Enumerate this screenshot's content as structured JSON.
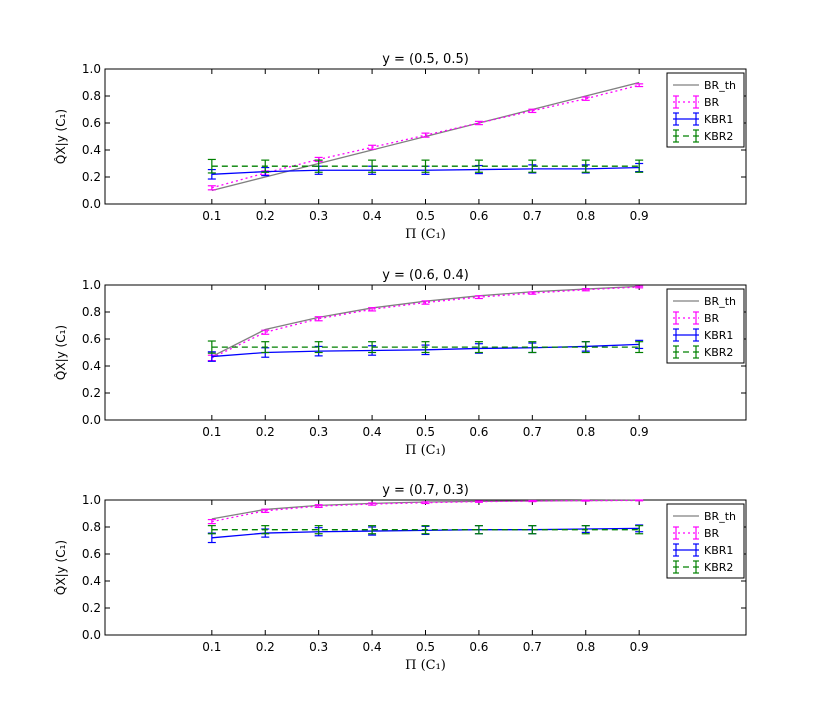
{
  "chart_data": [
    {
      "type": "line",
      "title": "y = (0.5, 0.5)",
      "xlabel": "Π (C₁)",
      "ylabel": "Q̂X|y (C₁)",
      "xlim": [
        -0.1,
        1.1
      ],
      "ylim": [
        0.0,
        1.0
      ],
      "xticks": [
        "0.1",
        "0.2",
        "0.3",
        "0.4",
        "0.5",
        "0.6",
        "0.7",
        "0.8",
        "0.9"
      ],
      "yticks": [
        "0.0",
        "0.2",
        "0.4",
        "0.6",
        "0.8",
        "1.0"
      ],
      "legend": "top-right",
      "x": [
        0.1,
        0.2,
        0.3,
        0.4,
        0.5,
        0.6,
        0.7,
        0.8,
        0.9
      ],
      "series": [
        {
          "name": "BR_th",
          "color": "#808080",
          "style": "solid",
          "values": [
            0.1,
            0.2,
            0.3,
            0.4,
            0.5,
            0.6,
            0.7,
            0.8,
            0.9
          ]
        },
        {
          "name": "BR",
          "color": "#ff00ff",
          "style": "dotted",
          "values": [
            0.12,
            0.23,
            0.33,
            0.42,
            0.51,
            0.6,
            0.69,
            0.78,
            0.88
          ],
          "errors": [
            0.015,
            0.015,
            0.015,
            0.015,
            0.015,
            0.012,
            0.012,
            0.012,
            0.01
          ]
        },
        {
          "name": "KBR1",
          "color": "#0000ff",
          "style": "solid",
          "values": [
            0.22,
            0.24,
            0.25,
            0.25,
            0.25,
            0.255,
            0.26,
            0.26,
            0.27
          ],
          "errors": [
            0.035,
            0.03,
            0.03,
            0.03,
            0.03,
            0.03,
            0.03,
            0.03,
            0.03
          ]
        },
        {
          "name": "KBR2",
          "color": "#008000",
          "style": "dashed",
          "values": [
            0.28,
            0.28,
            0.28,
            0.28,
            0.28,
            0.28,
            0.28,
            0.28,
            0.28
          ],
          "errors": [
            0.05,
            0.045,
            0.045,
            0.045,
            0.045,
            0.045,
            0.045,
            0.045,
            0.045
          ]
        }
      ]
    },
    {
      "type": "line",
      "title": "y = (0.6, 0.4)",
      "xlabel": "Π (C₁)",
      "ylabel": "Q̂X|y (C₁)",
      "xlim": [
        -0.1,
        1.1
      ],
      "ylim": [
        0.0,
        1.0
      ],
      "xticks": [
        "0.1",
        "0.2",
        "0.3",
        "0.4",
        "0.5",
        "0.6",
        "0.7",
        "0.8",
        "0.9"
      ],
      "yticks": [
        "0.0",
        "0.2",
        "0.4",
        "0.6",
        "0.8",
        "1.0"
      ],
      "legend": "top-right",
      "x": [
        0.1,
        0.2,
        0.3,
        0.4,
        0.5,
        0.6,
        0.7,
        0.8,
        0.9
      ],
      "series": [
        {
          "name": "BR_th",
          "color": "#808080",
          "style": "solid",
          "values": [
            0.47,
            0.67,
            0.76,
            0.83,
            0.88,
            0.92,
            0.95,
            0.97,
            0.99
          ]
        },
        {
          "name": "BR",
          "color": "#ff00ff",
          "style": "dotted",
          "values": [
            0.46,
            0.65,
            0.75,
            0.82,
            0.87,
            0.91,
            0.94,
            0.965,
            0.985
          ],
          "errors": [
            0.02,
            0.015,
            0.015,
            0.012,
            0.012,
            0.01,
            0.008,
            0.008,
            0.006
          ]
        },
        {
          "name": "KBR1",
          "color": "#0000ff",
          "style": "solid",
          "values": [
            0.47,
            0.5,
            0.51,
            0.515,
            0.52,
            0.53,
            0.535,
            0.545,
            0.56
          ],
          "errors": [
            0.035,
            0.035,
            0.035,
            0.035,
            0.035,
            0.035,
            0.035,
            0.035,
            0.03
          ]
        },
        {
          "name": "KBR2",
          "color": "#008000",
          "style": "dashed",
          "values": [
            0.54,
            0.54,
            0.54,
            0.54,
            0.54,
            0.54,
            0.54,
            0.54,
            0.54
          ],
          "errors": [
            0.045,
            0.04,
            0.04,
            0.04,
            0.04,
            0.04,
            0.04,
            0.04,
            0.04
          ]
        }
      ]
    },
    {
      "type": "line",
      "title": "y = (0.7, 0.3)",
      "xlabel": "Π (C₁)",
      "ylabel": "Q̂X|y (C₁)",
      "xlim": [
        -0.1,
        1.1
      ],
      "ylim": [
        0.0,
        1.0
      ],
      "xticks": [
        "0.1",
        "0.2",
        "0.3",
        "0.4",
        "0.5",
        "0.6",
        "0.7",
        "0.8",
        "0.9"
      ],
      "yticks": [
        "0.0",
        "0.2",
        "0.4",
        "0.6",
        "0.8",
        "1.0"
      ],
      "legend": "top-right",
      "x": [
        0.1,
        0.2,
        0.3,
        0.4,
        0.5,
        0.6,
        0.7,
        0.8,
        0.9
      ],
      "series": [
        {
          "name": "BR_th",
          "color": "#808080",
          "style": "solid",
          "values": [
            0.86,
            0.93,
            0.96,
            0.975,
            0.985,
            0.99,
            0.993,
            0.996,
            0.998
          ]
        },
        {
          "name": "BR",
          "color": "#ff00ff",
          "style": "dotted",
          "values": [
            0.84,
            0.92,
            0.955,
            0.97,
            0.98,
            0.988,
            0.992,
            0.995,
            0.997
          ],
          "errors": [
            0.015,
            0.012,
            0.01,
            0.008,
            0.006,
            0.005,
            0.004,
            0.003,
            0.003
          ]
        },
        {
          "name": "KBR1",
          "color": "#0000ff",
          "style": "solid",
          "values": [
            0.72,
            0.755,
            0.765,
            0.77,
            0.775,
            0.78,
            0.78,
            0.785,
            0.79
          ],
          "errors": [
            0.035,
            0.03,
            0.03,
            0.03,
            0.03,
            0.03,
            0.03,
            0.025,
            0.025
          ]
        },
        {
          "name": "KBR2",
          "color": "#008000",
          "style": "dashed",
          "values": [
            0.78,
            0.78,
            0.78,
            0.78,
            0.78,
            0.78,
            0.78,
            0.78,
            0.78
          ],
          "errors": [
            0.03,
            0.03,
            0.03,
            0.03,
            0.03,
            0.03,
            0.03,
            0.03,
            0.03
          ]
        }
      ]
    }
  ]
}
